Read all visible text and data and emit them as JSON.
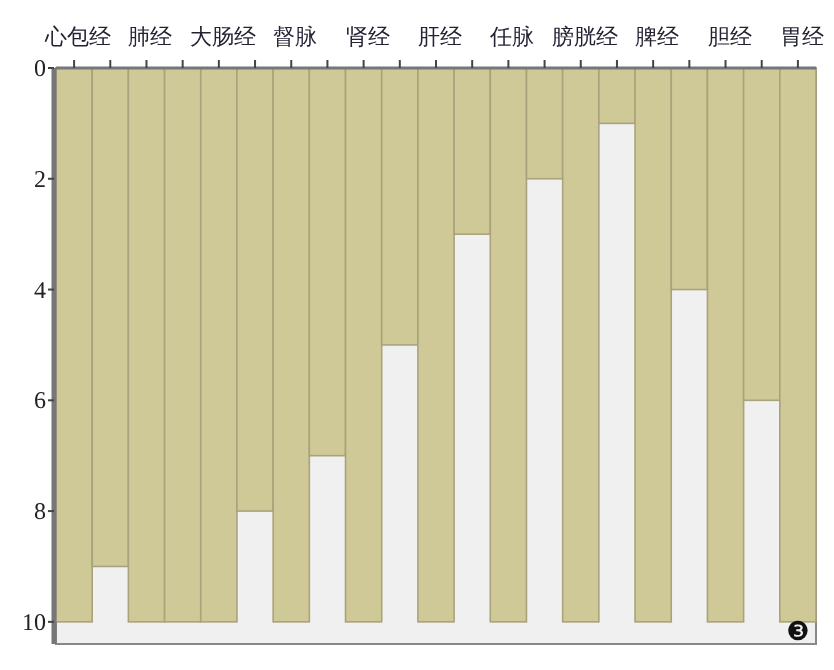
{
  "chart_data": {
    "type": "bar",
    "categories": [
      "心包经",
      null,
      "肺经",
      null,
      "大肠经",
      null,
      "督脉",
      null,
      "肾经",
      null,
      "肝经",
      null,
      "任脉",
      null,
      "膀胱经",
      null,
      "脾经",
      null,
      "胆经",
      null,
      "胃经"
    ],
    "values": [
      10,
      9,
      10,
      10,
      10,
      8,
      10,
      7,
      10,
      5,
      10,
      3,
      10,
      2,
      10,
      1,
      10,
      4,
      10,
      6,
      10
    ],
    "color": "#cfc897",
    "ylim": [
      10.4,
      0
    ],
    "yticks": [
      0,
      2,
      4,
      6,
      8,
      10
    ],
    "grid": false,
    "annotations": [
      "❸"
    ]
  }
}
